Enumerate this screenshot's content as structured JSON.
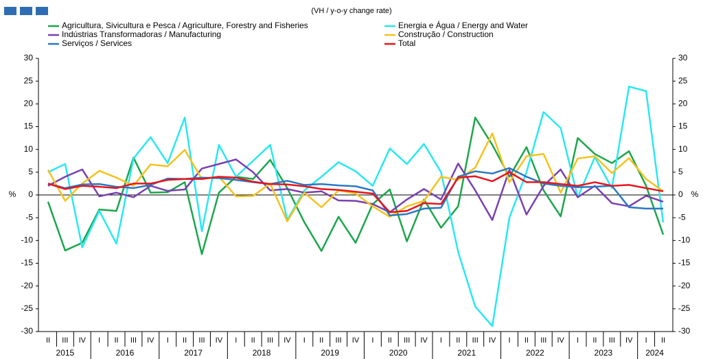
{
  "chart_data": {
    "type": "line",
    "subtitle": "(VH / y-o-y change rate)",
    "y_axis_label": "%",
    "y2_axis_label": "%",
    "categories": [
      "II",
      "III",
      "IV",
      "I",
      "II",
      "III",
      "IV",
      "I",
      "II",
      "III",
      "IV",
      "I",
      "II",
      "III",
      "IV",
      "I",
      "II",
      "III",
      "IV",
      "I",
      "II",
      "III",
      "IV",
      "I",
      "II",
      "III",
      "IV",
      "I",
      "II",
      "III",
      "IV",
      "I",
      "II",
      "III",
      "IV",
      "I",
      "II"
    ],
    "years": [
      "2015",
      "2016",
      "2017",
      "2018",
      "2019",
      "2020",
      "2021",
      "2022",
      "2023",
      "2024"
    ],
    "ylim": [
      -30,
      30
    ],
    "yticks": [
      -30,
      -25,
      -20,
      -15,
      -10,
      -5,
      0,
      5,
      10,
      15,
      20,
      25,
      30
    ],
    "y2lim": [
      -30,
      30
    ],
    "y2ticks": [
      -30,
      -25,
      -20,
      -15,
      -10,
      -5,
      0,
      5,
      10,
      15,
      20,
      25,
      30
    ],
    "grid": false,
    "legend": "top",
    "series": [
      {
        "name": "Agricultura, Sivicultura e Pesca / Agriculture, Forestry and Fisheries",
        "color": "#1aa64a",
        "values": [
          -1.5,
          -12.2,
          -10.5,
          -3.2,
          -3.5,
          8.2,
          0.5,
          0.6,
          2.8,
          -13,
          0.5,
          4,
          3.5,
          7.7,
          1.5,
          -6,
          -12.3,
          -4.8,
          -10.5,
          -2,
          1.2,
          -10.2,
          -1,
          -7.2,
          -2.5,
          17,
          11,
          4,
          10.5,
          1,
          -4.7,
          12.5,
          9,
          7,
          9.6,
          2,
          -8.7
        ]
      },
      {
        "name": "Energia e Água / Energy and Water",
        "color": "#27e8f0",
        "values": [
          5,
          6.8,
          -11.5,
          -3.5,
          -10.7,
          8,
          12.7,
          7,
          17,
          -8,
          11,
          4,
          7.5,
          11,
          -5.5,
          1,
          4,
          7.2,
          5.2,
          2,
          10.2,
          6.8,
          11.2,
          5,
          -12.5,
          -24.5,
          -28.8,
          -5,
          5,
          18.2,
          14.7,
          -0.5,
          8.3,
          1.5,
          23.8,
          22.8,
          -6
        ]
      },
      {
        "name": "Indústrias Transformadoras / Manufacturing",
        "color": "#7a3fb0",
        "values": [
          2,
          4,
          5.6,
          -0.3,
          0.5,
          -0.5,
          2,
          0.9,
          1.2,
          5.8,
          6.8,
          7.8,
          5,
          1,
          1.3,
          0.5,
          0.8,
          -1.2,
          -1.3,
          -2,
          -3.8,
          -1,
          1.3,
          -1,
          6.9,
          1,
          -5.5,
          5.5,
          -4.3,
          2,
          5.6,
          -0.5,
          2,
          -1.8,
          -2.5,
          -0.2,
          -1.5
        ]
      },
      {
        "name": "Construção / Construction",
        "color": "#f5c21b",
        "values": [
          5.5,
          -1.3,
          2.5,
          5.3,
          3.8,
          2,
          6.7,
          6.3,
          9.9,
          3.5,
          4,
          -0.3,
          -0.2,
          2.5,
          -5.8,
          0.5,
          -2.7,
          1,
          0.3,
          -2.5,
          -4.8,
          -2.5,
          -1.3,
          4,
          3.3,
          6,
          13.5,
          2.8,
          8.5,
          9,
          0.5,
          8,
          8.5,
          4.8,
          8.1,
          3.5,
          0.8
        ]
      },
      {
        "name": "Serviços / Services",
        "color": "#2a78c2",
        "values": [
          2.5,
          1.5,
          2.3,
          2.4,
          1.8,
          1.5,
          2.2,
          3.6,
          3.5,
          3.8,
          3.7,
          3.3,
          2.8,
          2.4,
          3.1,
          2.2,
          2.4,
          2.1,
          1.9,
          1,
          -4.5,
          -4.2,
          -3,
          -2.8,
          4,
          5.2,
          4.7,
          5.9,
          4,
          2.5,
          2,
          1.7,
          1.8,
          2,
          -2.7,
          -3,
          -3
        ]
      },
      {
        "name": "Total",
        "color": "#e8141c",
        "values": [
          2.5,
          1.3,
          2,
          1.8,
          1.5,
          2.5,
          2.5,
          3.3,
          3.5,
          3.5,
          4,
          3.8,
          2.9,
          2.4,
          2.3,
          1.9,
          1.3,
          1.1,
          0.7,
          0.3,
          -3.8,
          -3.5,
          -1.8,
          -2,
          3.8,
          4.1,
          3,
          5,
          2.8,
          2.8,
          2.4,
          2,
          2.8,
          2,
          2.2,
          1.5,
          0.8
        ]
      }
    ]
  }
}
